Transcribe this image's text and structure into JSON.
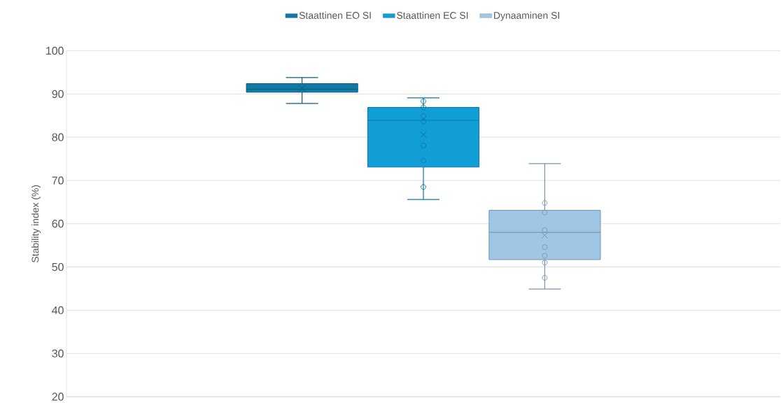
{
  "chart_data": {
    "type": "box",
    "ylabel": "Stability index (%)",
    "categories": [
      null
    ],
    "series": [
      {
        "name": "Staattinen EO SI",
        "color": "#0f7aa5",
        "boxes": [
          {
            "low": 87.8,
            "q1": 90.4,
            "median": 91.1,
            "q3": 92.4,
            "high": 93.8,
            "mean": 91.3
          }
        ]
      },
      {
        "name": "Staattinen EC SI",
        "color": "#119ed7",
        "boxes": [
          {
            "low": 65.6,
            "q1": 73.1,
            "median": 83.9,
            "q3": 86.9,
            "high": 89.1,
            "mean": 80.6,
            "outliers": [
              88.3,
              86.9,
              84.9,
              83.6,
              78.1,
              74.6,
              68.5
            ]
          }
        ]
      },
      {
        "name": "Dynaaminen SI",
        "color": "#a0c6e6",
        "boxes": [
          {
            "low": 44.9,
            "q1": 51.7,
            "median": 58.0,
            "q3": 63.1,
            "high": 73.9,
            "mean": 57.3,
            "outliers": [
              64.8,
              62.6,
              58.5,
              54.6,
              52.6,
              51.0,
              47.5
            ]
          }
        ]
      }
    ],
    "ylim": [
      20,
      100
    ],
    "yticks": [
      20,
      30,
      40,
      50,
      60,
      70,
      80,
      90,
      100
    ],
    "grid": "y",
    "legend": "top"
  }
}
